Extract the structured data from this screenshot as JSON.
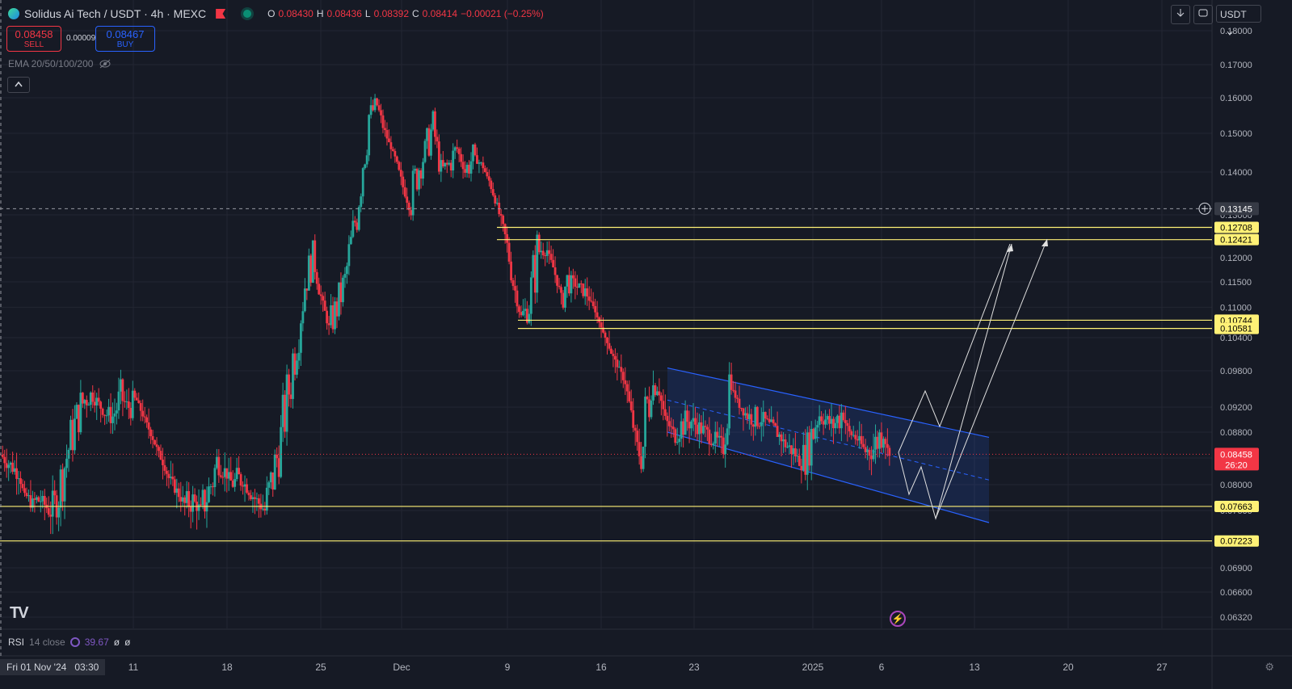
{
  "header": {
    "symbol": "Solidus Ai Tech / USDT · 4h · MEXC",
    "ohlc": {
      "O": "0.08430",
      "H": "0.08436",
      "L": "0.08392",
      "C": "0.08414",
      "chg": "−0.00021 (−0.25%)"
    },
    "sell_price": "0.08458",
    "sell_label": "SELL",
    "buy_price": "0.08467",
    "buy_label": "BUY",
    "spread": "0.00009",
    "indicator": "EMA 20/50/100/200",
    "collapse_icon": "chevron-up-icon"
  },
  "toolbar": {
    "download_icon": "download-icon",
    "fullscreen_icon": "fullscreen-icon",
    "currency": "USDT",
    "dropdown_icon": "chevron-down-icon"
  },
  "rsi": {
    "name": "RSI",
    "settings": "14 close",
    "value": "39.67",
    "extra1": "ø",
    "extra2": "ø"
  },
  "footer": {
    "date": "Fri 01 Nov '24",
    "time": "03:30",
    "gear_icon": "gear-icon",
    "logo": "TV"
  },
  "colors": {
    "bg": "#161a25",
    "up": "#26a69a",
    "down": "#f23645",
    "level": "#fff176",
    "channel": "#2962ff"
  },
  "chart_data": {
    "type": "candlestick",
    "timeframe": "4h",
    "price_axis": {
      "ylim": [
        0.0612,
        0.182
      ],
      "ticks": [
        "0.18000",
        "0.17000",
        "0.16000",
        "0.15000",
        "0.14000",
        "0.13000",
        "0.12000",
        "0.11500",
        "0.11000",
        "0.10400",
        "0.09800",
        "0.09200",
        "0.08800",
        "0.08400",
        "0.08000",
        "0.07600",
        "0.07200",
        "0.06900",
        "0.06600",
        "0.06320"
      ]
    },
    "time_axis": {
      "ticks": [
        "11",
        "18",
        "25",
        "Dec",
        "9",
        "16",
        "23",
        "2025",
        "6",
        "13",
        "20",
        "27"
      ]
    },
    "price_path": [
      [
        0.0845,
        0.0832,
        0.082,
        0.0785,
        0.077,
        0.0778,
        0.076,
        0.0775,
        0.083,
        0.088,
        0.092,
        0.0945,
        0.093,
        0.091,
        0.0905,
        0.0935,
        0.092,
        0.093,
        0.09,
        0.087,
        0.084,
        0.081,
        0.079,
        0.077,
        0.0775,
        0.076,
        0.079,
        0.083,
        0.082,
        0.08,
        0.081,
        0.079,
        0.0775,
        0.076,
        0.081,
        0.087,
        0.095,
        0.105,
        0.115,
        0.12,
        0.112,
        0.106,
        0.11,
        0.115,
        0.125,
        0.14,
        0.155,
        0.158,
        0.15,
        0.145,
        0.138,
        0.132,
        0.14,
        0.145,
        0.152,
        0.14,
        0.142,
        0.146,
        0.14,
        0.144,
        0.142,
        0.138,
        0.132,
        0.125,
        0.115,
        0.108,
        0.11,
        0.121,
        0.123,
        0.118,
        0.112,
        0.116,
        0.114,
        0.113,
        0.11,
        0.106,
        0.102,
        0.099,
        0.096,
        0.089,
        0.083,
        0.095,
        0.096,
        0.09,
        0.088,
        0.089,
        0.09,
        0.089,
        0.088,
        0.087,
        0.086,
        0.096,
        0.093,
        0.091,
        0.09,
        0.0905,
        0.089,
        0.088,
        0.086,
        0.085,
        0.083,
        0.086,
        0.091,
        0.09,
        0.089,
        0.091,
        0.088,
        0.087,
        0.085,
        0.0855,
        0.088,
        0.0846
      ]
    ],
    "last_price": "0.08458",
    "countdown": "26:20",
    "crosshair_price": "0.13145",
    "levels": [
      "0.12708",
      "0.12421",
      "0.10744",
      "0.10581",
      "0.07663",
      "0.07223"
    ],
    "channel": {
      "upper_start": [
        0.0985,
        "Dec 20"
      ],
      "upper_end": [
        0.0872,
        "Jan 15"
      ],
      "lower_start": [
        0.088,
        "Dec 20"
      ],
      "lower_end": [
        0.0745,
        "Jan 15"
      ]
    }
  }
}
